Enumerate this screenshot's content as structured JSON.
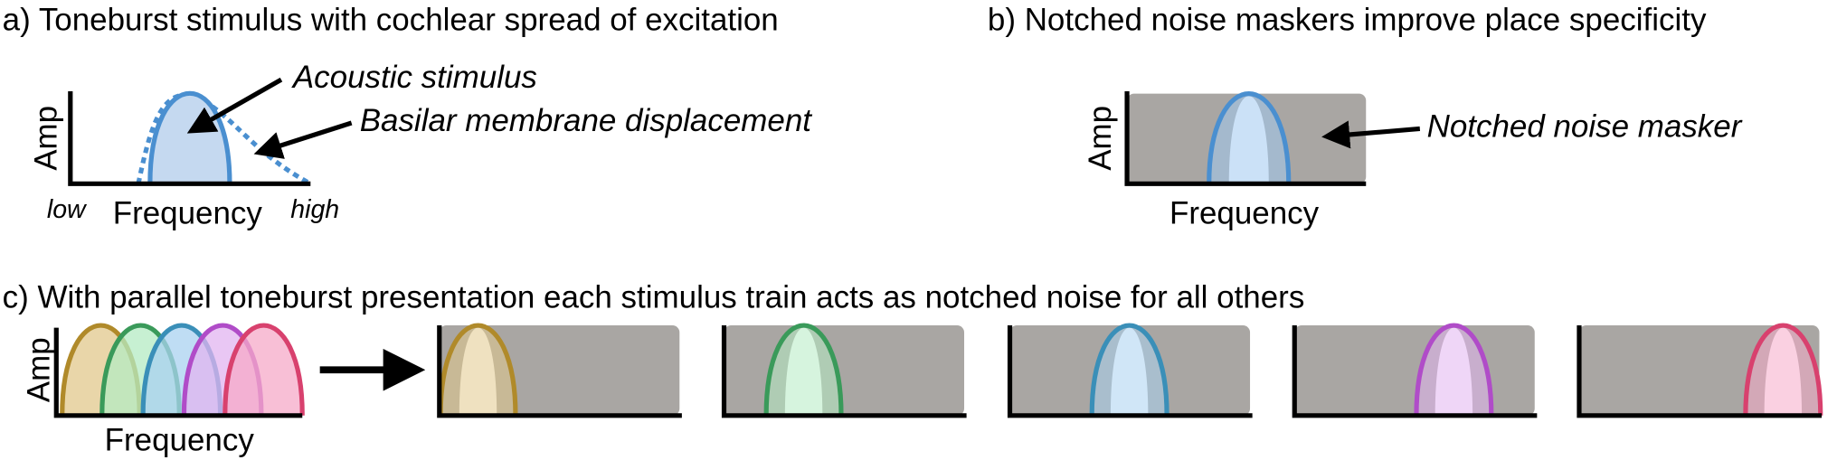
{
  "panel_a": {
    "title": "a) Toneburst stimulus with cochlear spread of excitation",
    "y_label": "Amp",
    "x_label": "Frequency",
    "low": "low",
    "high": "high",
    "stimulus_label": "Acoustic stimulus",
    "displacement_label": "Basilar membrane displacement"
  },
  "panel_b": {
    "title": "b) Notched noise maskers improve place specificity",
    "y_label": "Amp",
    "x_label": "Frequency",
    "masker_label": "Notched noise masker"
  },
  "panel_c": {
    "title": "c) With parallel toneburst presentation each stimulus train acts as notched noise for all others",
    "y_label": "Amp",
    "x_label": "Frequency"
  }
}
